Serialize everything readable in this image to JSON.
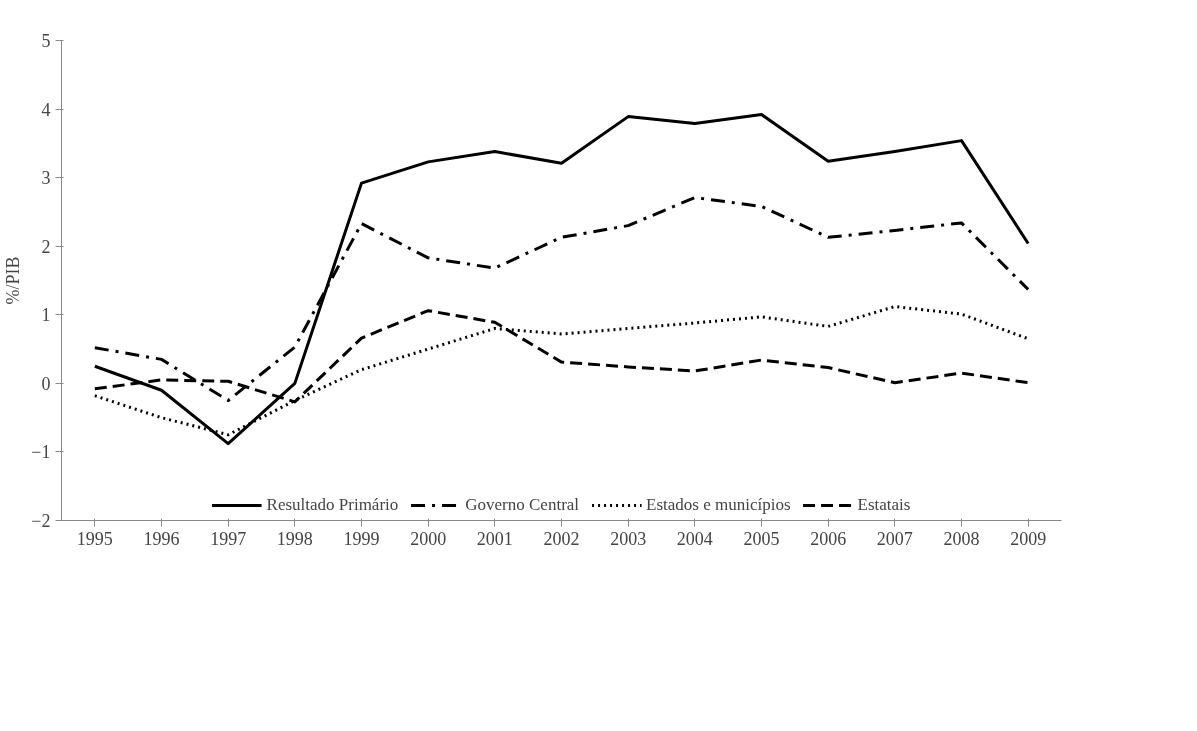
{
  "chart_data": {
    "type": "line",
    "ylabel": "%/PIB",
    "categories": [
      "1995",
      "1996",
      "1997",
      "1998",
      "1999",
      "2000",
      "2001",
      "2002",
      "2003",
      "2004",
      "2005",
      "2006",
      "2007",
      "2008",
      "2009"
    ],
    "series": [
      {
        "name": "Resultado Primário",
        "color": "#000000",
        "line_style": "solid",
        "values": [
          0.25,
          -0.1,
          -0.88,
          0.0,
          2.92,
          3.23,
          3.38,
          3.21,
          3.89,
          3.79,
          3.92,
          3.24,
          3.38,
          3.54,
          2.04
        ]
      },
      {
        "name": "Governo Central",
        "color": "#000000",
        "line_style": "dashdot",
        "values": [
          0.52,
          0.35,
          -0.25,
          0.53,
          2.33,
          1.83,
          1.68,
          2.13,
          2.3,
          2.71,
          2.58,
          2.13,
          2.23,
          2.34,
          1.37
        ]
      },
      {
        "name": "Estados e municípios",
        "color": "#000000",
        "line_style": "dotted",
        "values": [
          -0.18,
          -0.5,
          -0.75,
          -0.25,
          0.2,
          0.5,
          0.8,
          0.72,
          0.8,
          0.88,
          0.97,
          0.83,
          1.12,
          1.01,
          0.65
        ]
      },
      {
        "name": "Estatais",
        "color": "#000000",
        "line_style": "dashed",
        "values": [
          -0.08,
          0.05,
          0.03,
          -0.27,
          0.66,
          1.06,
          0.89,
          0.31,
          0.24,
          0.18,
          0.34,
          0.23,
          0.01,
          0.15,
          0.01
        ]
      }
    ],
    "ylim": [
      -2,
      5
    ],
    "yticks": [
      -2,
      -1,
      0,
      1,
      2,
      3,
      4,
      5
    ],
    "grid": false,
    "legend": "bottom",
    "marker": "none"
  }
}
